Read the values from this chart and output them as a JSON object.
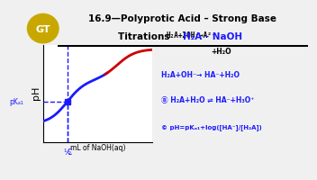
{
  "bg_color": "#f0f0f0",
  "title_line1": "16.9—Polyprotic Acid – Strong Base",
  "title_line2": "Titrations ",
  "title_h2a": "H₂A - NaOH",
  "logo_color": "#c8a800",
  "eq1_strikethrough": "H₂A+2OH⁻→A²⁻",
  "eq2_strikethrough": "+H₂O",
  "eq3": "H₂A+OH⁻→ HA⁻+H₂O",
  "eq4": "Ⓑ H₂A+H₂O ⇌ HA⁻+H₃O⁺",
  "eq5": "© pH=pKₐ₁+log([HA⁻]/[H₂A])",
  "curve_color_blue": "#1a1aff",
  "curve_color_red": "#cc0000",
  "graph_bg": "#ffffff",
  "xlabel": "mL of NaOH(aq)",
  "ylabel": "pH",
  "pka_label": "pKₐ₁",
  "half_label": "½",
  "c_label": "C"
}
